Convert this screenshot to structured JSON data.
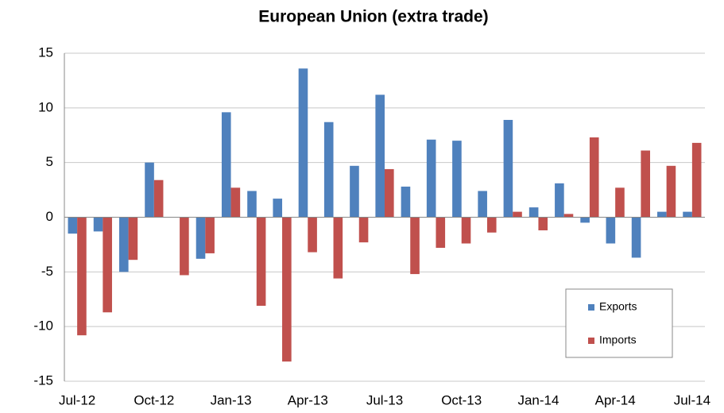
{
  "chart_data": {
    "type": "bar",
    "title": "European Union (extra trade)",
    "categories": [
      "Jul-12",
      null,
      null,
      "Oct-12",
      null,
      null,
      "Jan-13",
      null,
      null,
      "Apr-13",
      null,
      null,
      "Jul-13",
      null,
      null,
      "Oct-13",
      null,
      null,
      "Jan-14",
      null,
      null,
      "Apr-14",
      null,
      null,
      "Jul-14"
    ],
    "series": [
      {
        "name": "Exports",
        "color": "#4f81bd",
        "values": [
          -1.5,
          -1.3,
          -5,
          5,
          0,
          -3.8,
          9.6,
          2.4,
          1.7,
          13.6,
          8.7,
          4.7,
          11.2,
          2.8,
          7.1,
          7.0,
          2.4,
          8.9,
          0.9,
          3.1,
          -0.5,
          -2.4,
          -3.7,
          0.5,
          0.5
        ]
      },
      {
        "name": "Imports",
        "color": "#c0504d",
        "values": [
          -10.8,
          -8.7,
          -3.9,
          3.4,
          -5.3,
          -3.3,
          2.7,
          -8.1,
          -13.2,
          -3.2,
          -5.6,
          -2.3,
          4.4,
          -5.2,
          -2.8,
          -2.4,
          -1.4,
          0.5,
          -1.2,
          0.3,
          7.3,
          2.7,
          6.1,
          4.7,
          6.8
        ]
      }
    ],
    "ylim": [
      -15,
      15
    ],
    "yticks": [
      -15,
      -10,
      -5,
      0,
      5,
      10,
      15
    ],
    "grid": true,
    "legend": "lower right"
  }
}
